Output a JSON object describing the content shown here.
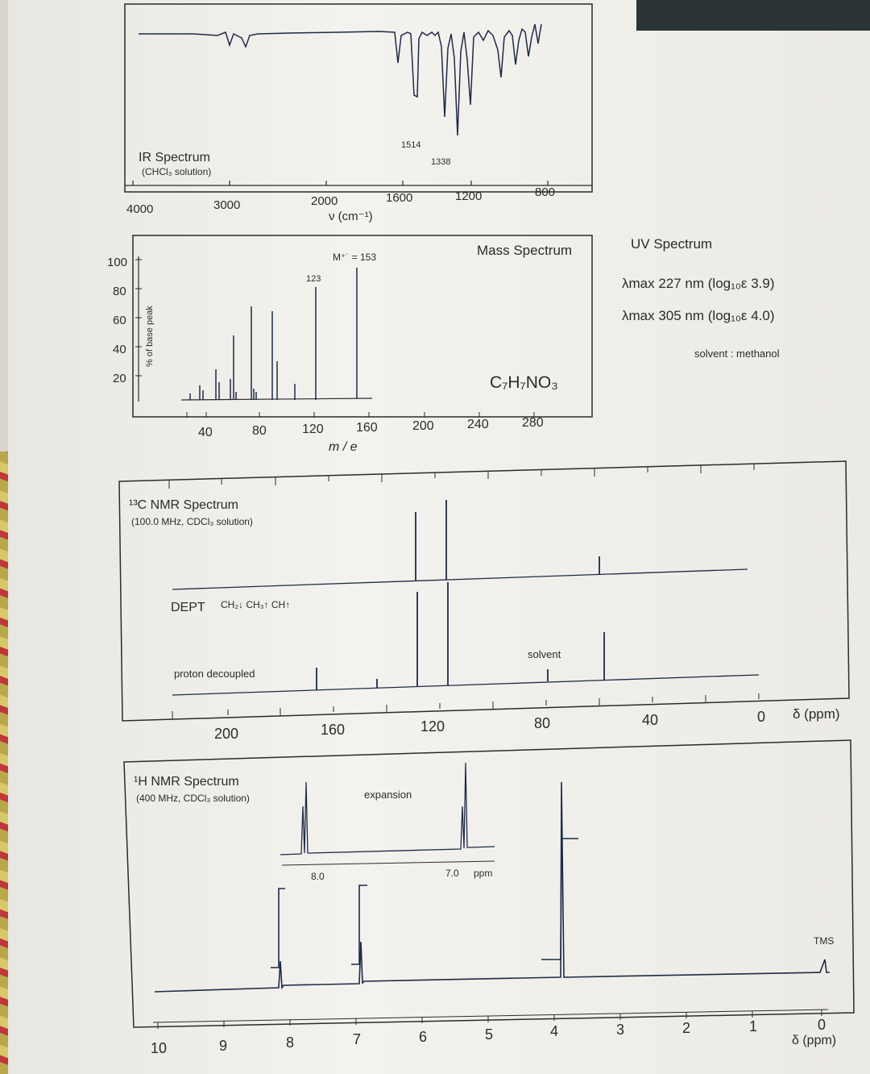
{
  "ir": {
    "title": "IR Spectrum",
    "subtitle": "(CHCl₃ solution)",
    "x_ticks": [
      "4000",
      "3000",
      "2000",
      "1600",
      "1200",
      "800"
    ],
    "x_label": "ν (cm⁻¹)",
    "peak_labels": [
      "1514",
      "1338"
    ]
  },
  "mass": {
    "title": "Mass Spectrum",
    "y_label": "% of base peak",
    "y_ticks": [
      "100",
      "80",
      "60",
      "40",
      "20"
    ],
    "x_ticks": [
      "40",
      "80",
      "120",
      "160",
      "200",
      "240",
      "280"
    ],
    "x_label": "m / e",
    "molecular_ion": "M⁺˙ = 153",
    "peak_123": "123",
    "formula": "C₇H₇NO₃"
  },
  "uv": {
    "title": "UV Spectrum",
    "line1": "λmax 227 nm (log₁₀ε 3.9)",
    "line2": "λmax 305 nm (log₁₀ε 4.0)",
    "solvent": "solvent : methanol"
  },
  "c13": {
    "title": "¹³C NMR Spectrum",
    "subtitle": "(100.0 MHz, CDCl₃ solution)",
    "dept": "DEPT",
    "dept_legend": "CH₂↓ CH₃↑ CH↑",
    "proton_decoupled": "proton decoupled",
    "solvent": "solvent",
    "x_ticks": [
      "200",
      "160",
      "120",
      "80",
      "40",
      "0"
    ],
    "x_label": "δ (ppm)"
  },
  "h1": {
    "title": "¹H NMR Spectrum",
    "subtitle": "(400 MHz, CDCl₃ solution)",
    "expansion": "expansion",
    "exp_ticks": [
      "8.0",
      "7.0"
    ],
    "exp_unit": "ppm",
    "tms": "TMS",
    "x_ticks": [
      "10",
      "9",
      "8",
      "7",
      "6",
      "5",
      "4",
      "3",
      "2",
      "1",
      "0"
    ],
    "x_label": "δ (ppm)"
  },
  "colors": {
    "ink": "#2b2b2b",
    "spectrum": "#1f2a48",
    "paper": "#f1f0ec"
  }
}
